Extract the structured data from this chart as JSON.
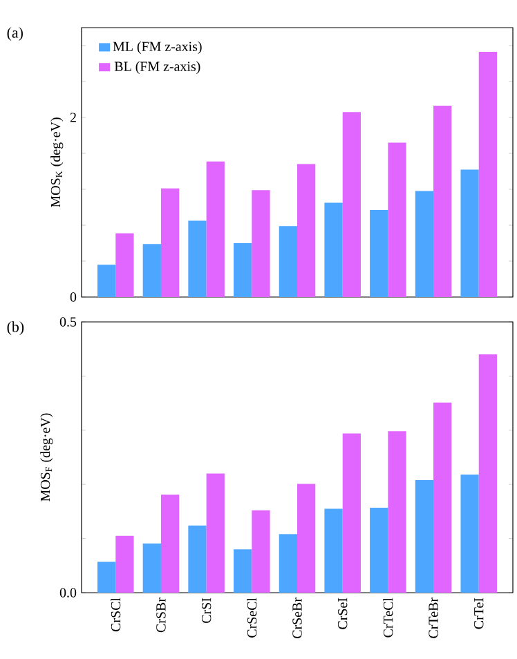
{
  "chart_data": [
    {
      "type": "bar",
      "categories": [
        null,
        null,
        null,
        null,
        null,
        null,
        null,
        null,
        null
      ],
      "series": [
        {
          "name": "ML (FM z-axis)",
          "color": "#4da6ff",
          "values": [
            0.36,
            0.59,
            0.85,
            0.6,
            0.79,
            1.05,
            0.97,
            1.18,
            1.42
          ]
        },
        {
          "name": "BL  (FM z-axis)",
          "color": "#e066ff",
          "values": [
            0.71,
            1.21,
            1.51,
            1.19,
            1.48,
            2.06,
            1.72,
            2.13,
            2.73
          ]
        }
      ],
      "ylabel": "MOS$_{K}$ (deg·eV)",
      "ylim": [
        0,
        3
      ],
      "yticks": [
        0,
        {
          "value": 0.4,
          "label": null
        },
        {
          "value": 0.8,
          "label": null
        },
        {
          "value": 1.2,
          "label": null
        },
        {
          "value": 1.6,
          "label": null
        },
        2,
        {
          "value": 2.4,
          "label": null
        },
        {
          "value": 2.8,
          "label": null
        }
      ],
      "legend": "top left",
      "annotations": [
        "(a)"
      ]
    },
    {
      "type": "bar",
      "categories": [
        "CrSCl",
        "CrSBr",
        "CrSI",
        "CrSeCl",
        "CrSeBr",
        "CrSeI",
        "CrTeCl",
        "CrTeBr",
        "CrTeI"
      ],
      "series": [
        {
          "color": "#4da6ff",
          "values": [
            0.057,
            0.091,
            0.124,
            0.08,
            0.108,
            0.155,
            0.157,
            0.208,
            0.218
          ]
        },
        {
          "color": "#e066ff",
          "values": [
            0.105,
            0.181,
            0.22,
            0.152,
            0.201,
            0.294,
            0.298,
            0.351,
            0.44
          ]
        }
      ],
      "ylabel": "MOS$_{F}$ (deg·eV)",
      "ylim": [
        0,
        0.5
      ],
      "yticks": [
        {
          "value": 0,
          "label": "0.0"
        },
        {
          "value": 0.1,
          "label": null
        },
        {
          "value": 0.2,
          "label": null
        },
        {
          "value": 0.3,
          "label": null
        },
        {
          "value": 0.4,
          "label": null
        },
        0.5
      ],
      "annotations": [
        "(b)"
      ]
    }
  ]
}
